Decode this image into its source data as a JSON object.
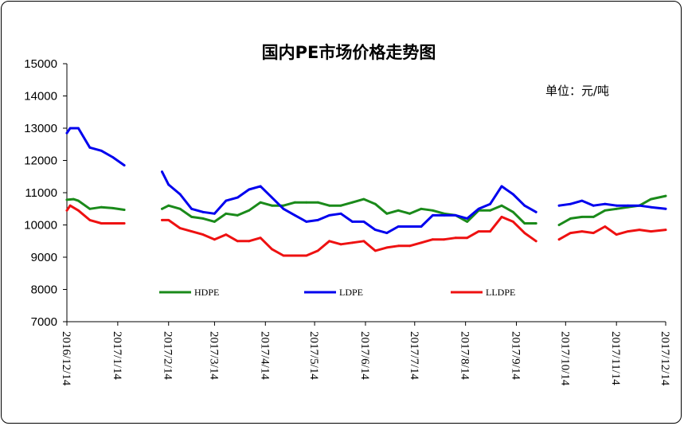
{
  "chart_data": {
    "type": "line",
    "title": "国内PE市场价格走势图",
    "unit_note": "单位：元/吨",
    "xlabel": "",
    "ylabel": "",
    "ylim": [
      7000,
      15000
    ],
    "yticks": [
      7000,
      8000,
      9000,
      10000,
      11000,
      12000,
      13000,
      14000,
      15000
    ],
    "x_tick_labels": [
      "2016/12/14",
      "2017/1/14",
      "2017/2/14",
      "2017/3/14",
      "2017/4/14",
      "2017/5/14",
      "2017/6/14",
      "2017/7/14",
      "2017/8/14",
      "2017/9/14",
      "2017/10/14",
      "2017/11/14",
      "2017/12/14"
    ],
    "legend_placement": "lower-middle",
    "grid": false,
    "x_range": [
      "2016-12-14",
      "2017-12-14"
    ],
    "series": [
      {
        "name": "HDPE",
        "color": "#1a8a1a",
        "segments": [
          [
            [
              "2016-12-14",
              10780
            ],
            [
              "2016-12-18",
              10800
            ],
            [
              "2016-12-21",
              10750
            ],
            [
              "2016-12-28",
              10500
            ],
            [
              "2017-01-04",
              10550
            ],
            [
              "2017-01-11",
              10520
            ],
            [
              "2017-01-18",
              10470
            ]
          ],
          [
            [
              "2017-02-10",
              10500
            ],
            [
              "2017-02-14",
              10600
            ],
            [
              "2017-02-21",
              10500
            ],
            [
              "2017-02-28",
              10250
            ],
            [
              "2017-03-07",
              10200
            ],
            [
              "2017-03-14",
              10100
            ],
            [
              "2017-03-21",
              10350
            ],
            [
              "2017-03-28",
              10300
            ],
            [
              "2017-04-04",
              10450
            ],
            [
              "2017-04-11",
              10700
            ],
            [
              "2017-04-18",
              10600
            ],
            [
              "2017-04-25",
              10600
            ],
            [
              "2017-05-02",
              10700
            ],
            [
              "2017-05-09",
              10700
            ],
            [
              "2017-05-16",
              10700
            ],
            [
              "2017-05-23",
              10600
            ],
            [
              "2017-05-30",
              10600
            ],
            [
              "2017-06-06",
              10700
            ],
            [
              "2017-06-13",
              10800
            ],
            [
              "2017-06-20",
              10650
            ],
            [
              "2017-06-27",
              10350
            ],
            [
              "2017-07-04",
              10450
            ],
            [
              "2017-07-11",
              10350
            ],
            [
              "2017-07-18",
              10500
            ],
            [
              "2017-07-25",
              10450
            ],
            [
              "2017-08-01",
              10350
            ],
            [
              "2017-08-08",
              10300
            ],
            [
              "2017-08-15",
              10100
            ],
            [
              "2017-08-22",
              10450
            ],
            [
              "2017-08-29",
              10450
            ],
            [
              "2017-09-05",
              10600
            ],
            [
              "2017-09-12",
              10400
            ],
            [
              "2017-09-19",
              10050
            ],
            [
              "2017-09-26",
              10050
            ]
          ],
          [
            [
              "2017-10-10",
              10000
            ],
            [
              "2017-10-17",
              10200
            ],
            [
              "2017-10-24",
              10250
            ],
            [
              "2017-10-31",
              10250
            ],
            [
              "2017-11-07",
              10450
            ],
            [
              "2017-11-14",
              10500
            ],
            [
              "2017-11-21",
              10550
            ],
            [
              "2017-11-28",
              10600
            ],
            [
              "2017-12-05",
              10800
            ],
            [
              "2017-12-14",
              10900
            ]
          ]
        ]
      },
      {
        "name": "LDPE",
        "color": "#0000ee",
        "segments": [
          [
            [
              "2016-12-14",
              12850
            ],
            [
              "2016-12-16",
              13000
            ],
            [
              "2016-12-21",
              13000
            ],
            [
              "2016-12-28",
              12400
            ],
            [
              "2017-01-04",
              12300
            ],
            [
              "2017-01-11",
              12100
            ],
            [
              "2017-01-18",
              11850
            ]
          ],
          [
            [
              "2017-02-10",
              11650
            ],
            [
              "2017-02-14",
              11250
            ],
            [
              "2017-02-21",
              10950
            ],
            [
              "2017-02-28",
              10500
            ],
            [
              "2017-03-07",
              10400
            ],
            [
              "2017-03-14",
              10350
            ],
            [
              "2017-03-21",
              10750
            ],
            [
              "2017-03-28",
              10850
            ],
            [
              "2017-04-04",
              11100
            ],
            [
              "2017-04-11",
              11200
            ],
            [
              "2017-04-18",
              10850
            ],
            [
              "2017-04-25",
              10500
            ],
            [
              "2017-05-02",
              10300
            ],
            [
              "2017-05-09",
              10100
            ],
            [
              "2017-05-16",
              10150
            ],
            [
              "2017-05-23",
              10300
            ],
            [
              "2017-05-30",
              10350
            ],
            [
              "2017-06-06",
              10100
            ],
            [
              "2017-06-13",
              10100
            ],
            [
              "2017-06-20",
              9850
            ],
            [
              "2017-06-27",
              9750
            ],
            [
              "2017-07-04",
              9950
            ],
            [
              "2017-07-11",
              9950
            ],
            [
              "2017-07-18",
              9950
            ],
            [
              "2017-07-25",
              10300
            ],
            [
              "2017-08-01",
              10300
            ],
            [
              "2017-08-08",
              10300
            ],
            [
              "2017-08-15",
              10200
            ],
            [
              "2017-08-22",
              10500
            ],
            [
              "2017-08-29",
              10650
            ],
            [
              "2017-09-05",
              11200
            ],
            [
              "2017-09-12",
              10950
            ],
            [
              "2017-09-19",
              10600
            ],
            [
              "2017-09-26",
              10400
            ]
          ],
          [
            [
              "2017-10-10",
              10600
            ],
            [
              "2017-10-17",
              10650
            ],
            [
              "2017-10-24",
              10750
            ],
            [
              "2017-10-31",
              10600
            ],
            [
              "2017-11-07",
              10650
            ],
            [
              "2017-11-14",
              10600
            ],
            [
              "2017-11-21",
              10600
            ],
            [
              "2017-11-28",
              10600
            ],
            [
              "2017-12-05",
              10550
            ],
            [
              "2017-12-14",
              10500
            ]
          ]
        ]
      },
      {
        "name": "LLDPE",
        "color": "#ee1111",
        "segments": [
          [
            [
              "2016-12-14",
              10450
            ],
            [
              "2016-12-16",
              10600
            ],
            [
              "2016-12-21",
              10450
            ],
            [
              "2016-12-28",
              10150
            ],
            [
              "2017-01-04",
              10050
            ],
            [
              "2017-01-11",
              10050
            ],
            [
              "2017-01-18",
              10050
            ]
          ],
          [
            [
              "2017-02-10",
              10150
            ],
            [
              "2017-02-14",
              10150
            ],
            [
              "2017-02-21",
              9900
            ],
            [
              "2017-02-28",
              9800
            ],
            [
              "2017-03-07",
              9700
            ],
            [
              "2017-03-14",
              9550
            ],
            [
              "2017-03-21",
              9700
            ],
            [
              "2017-03-28",
              9500
            ],
            [
              "2017-04-04",
              9500
            ],
            [
              "2017-04-11",
              9600
            ],
            [
              "2017-04-18",
              9250
            ],
            [
              "2017-04-25",
              9050
            ],
            [
              "2017-05-02",
              9050
            ],
            [
              "2017-05-09",
              9050
            ],
            [
              "2017-05-16",
              9200
            ],
            [
              "2017-05-23",
              9500
            ],
            [
              "2017-05-30",
              9400
            ],
            [
              "2017-06-06",
              9450
            ],
            [
              "2017-06-13",
              9500
            ],
            [
              "2017-06-20",
              9200
            ],
            [
              "2017-06-27",
              9300
            ],
            [
              "2017-07-04",
              9350
            ],
            [
              "2017-07-11",
              9350
            ],
            [
              "2017-07-18",
              9450
            ],
            [
              "2017-07-25",
              9550
            ],
            [
              "2017-08-01",
              9550
            ],
            [
              "2017-08-08",
              9600
            ],
            [
              "2017-08-15",
              9600
            ],
            [
              "2017-08-22",
              9800
            ],
            [
              "2017-08-29",
              9800
            ],
            [
              "2017-09-05",
              10250
            ],
            [
              "2017-09-12",
              10100
            ],
            [
              "2017-09-19",
              9750
            ],
            [
              "2017-09-26",
              9500
            ]
          ],
          [
            [
              "2017-10-10",
              9550
            ],
            [
              "2017-10-17",
              9750
            ],
            [
              "2017-10-24",
              9800
            ],
            [
              "2017-10-31",
              9750
            ],
            [
              "2017-11-07",
              9950
            ],
            [
              "2017-11-14",
              9700
            ],
            [
              "2017-11-21",
              9800
            ],
            [
              "2017-11-28",
              9850
            ],
            [
              "2017-12-05",
              9800
            ],
            [
              "2017-12-14",
              9850
            ]
          ]
        ]
      }
    ]
  }
}
